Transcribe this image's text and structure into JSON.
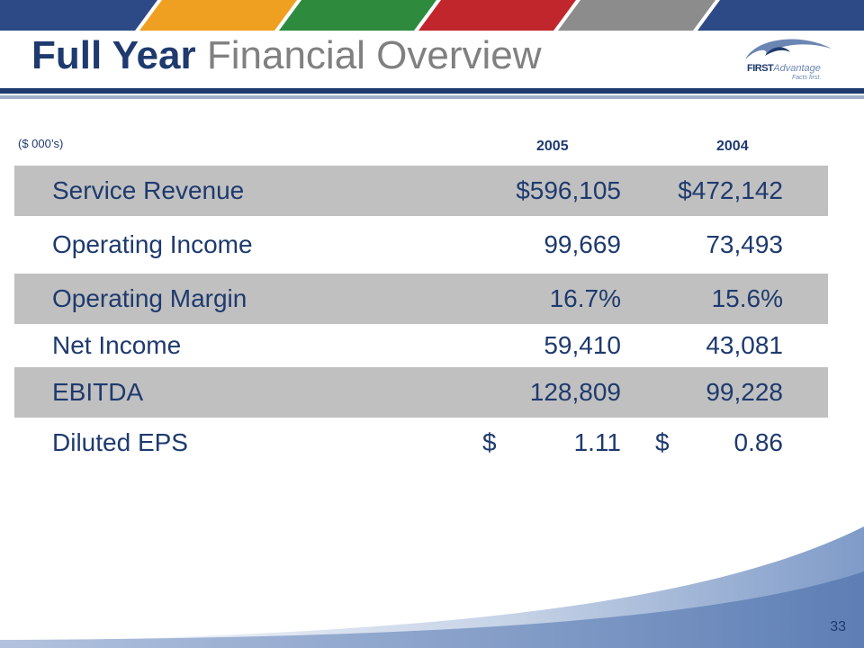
{
  "slide": {
    "title_bold": "Full Year",
    "title_light": "Financial Overview",
    "units": "($ 000’s)",
    "page_number": "33"
  },
  "logo": {
    "name_first": "FIRST",
    "name_second": "Advantage",
    "tagline": "Facts first."
  },
  "table": {
    "columns": [
      "2005",
      "2004"
    ],
    "rows": [
      {
        "label": "Service Revenue",
        "v2005": "$596,105",
        "v2004": "$472,142",
        "shaded": true
      },
      {
        "label": "Operating Income",
        "v2005": "99,669",
        "v2004": "73,493",
        "shaded": false
      },
      {
        "label": "Operating Margin",
        "v2005": "16.7%",
        "v2004": "15.6%",
        "shaded": true
      },
      {
        "label": "Net Income",
        "v2005": "59,410",
        "v2004": "43,081",
        "shaded": false
      },
      {
        "label": "EBITDA",
        "v2005": "128,809",
        "v2004": "99,228",
        "shaded": true
      },
      {
        "label": "Diluted EPS",
        "v2005": "1.11",
        "v2004": "0.86",
        "shaded": false,
        "currency": "$"
      }
    ]
  },
  "colors": {
    "navy": "#1e3a6e",
    "gray_text": "#808080",
    "row_shade": "#c0c0c0",
    "stripe_blue": "#2d4a86",
    "stripe_orange": "#f0a020",
    "stripe_green": "#2e8b3e",
    "stripe_red": "#c0262c",
    "stripe_gray": "#8c8c8c"
  }
}
